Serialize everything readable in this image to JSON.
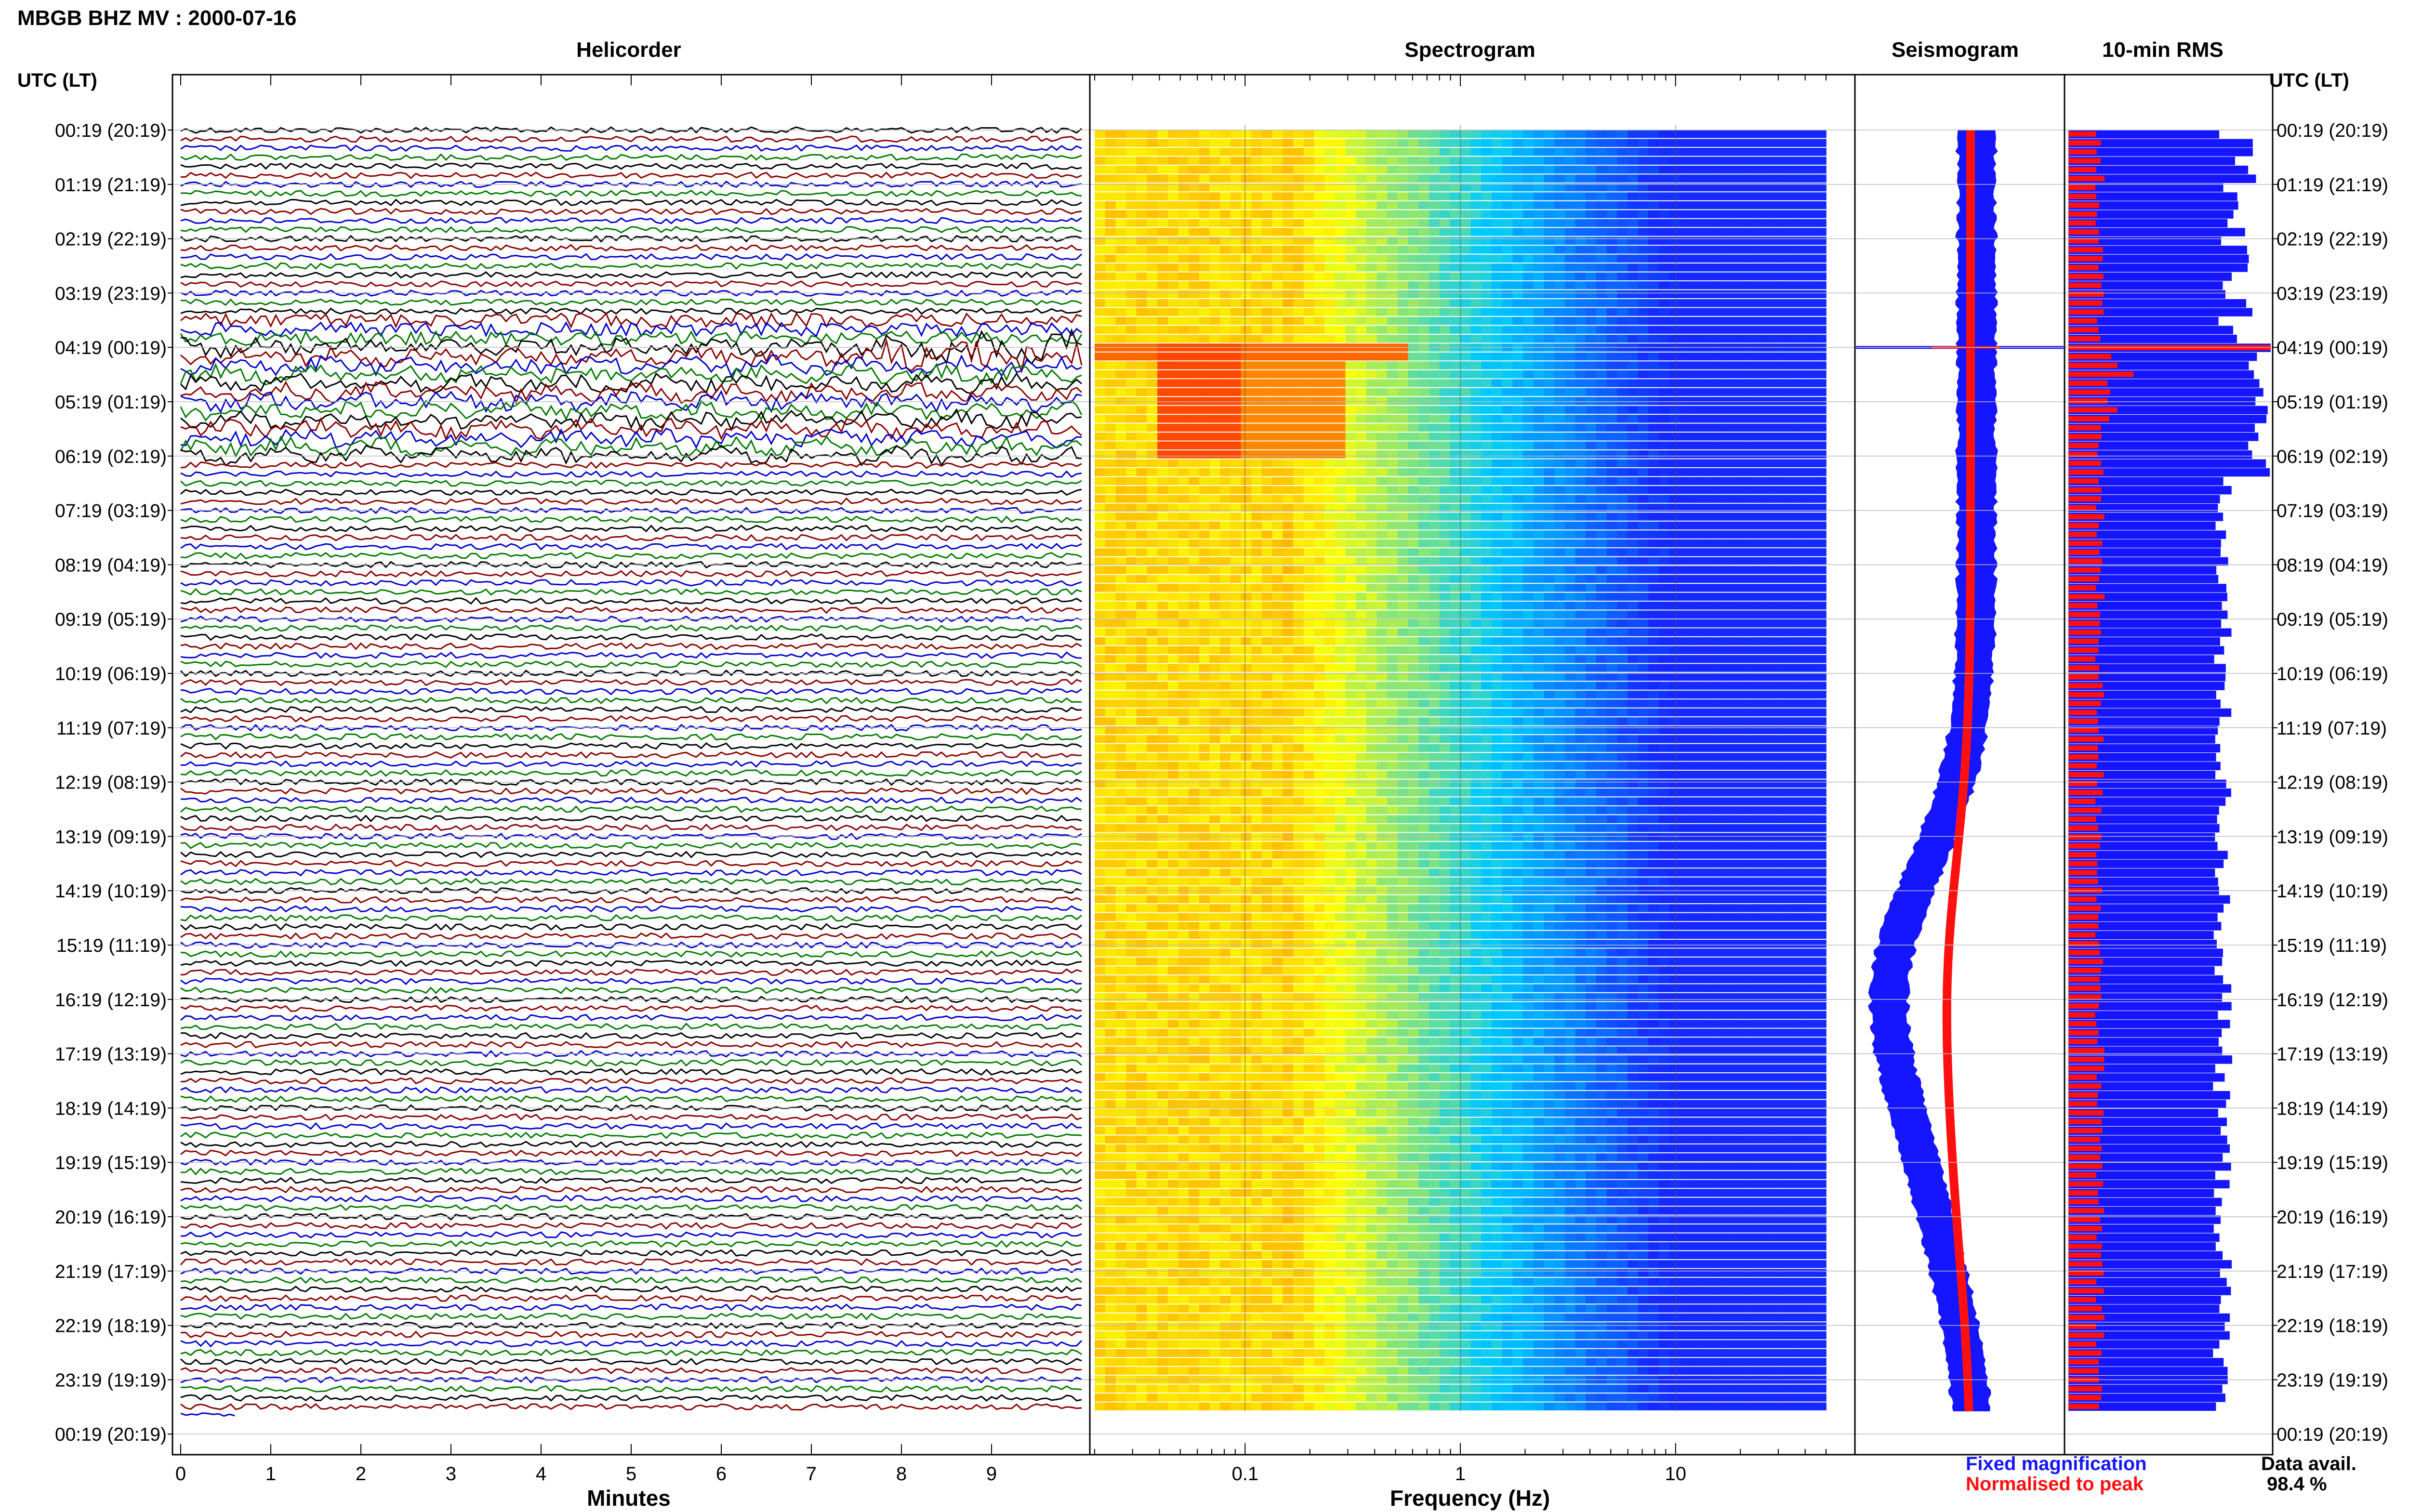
{
  "header": {
    "title": "MBGB BHZ MV : 2000-07-16",
    "utc_label_left": "UTC (LT)",
    "utc_label_right": "UTC (LT)"
  },
  "panels": {
    "helicorder": "Helicorder",
    "spectrogram": "Spectrogram",
    "seismogram": "Seismogram",
    "rms": "10-min RMS"
  },
  "axes": {
    "helicorder_xlabel": "Minutes",
    "helicorder_ticks": [
      "0",
      "1",
      "2",
      "3",
      "4",
      "5",
      "6",
      "7",
      "8",
      "9"
    ],
    "spectrogram_xlabel": "Frequency (Hz)",
    "spectrogram_ticks": [
      "0.1",
      "1",
      "10"
    ]
  },
  "legend": {
    "fixed": "Fixed magnification",
    "normalised": "Normalised to peak",
    "fixed_color": "#1515ff",
    "normalised_color": "#ff1010"
  },
  "data_avail": {
    "label": "Data avail.",
    "value": "98.4 %"
  },
  "colors": {
    "trace_colors": [
      "#000000",
      "#8b0000",
      "#0000cd",
      "#007a00"
    ],
    "seismo_fixed": "#1515ff",
    "seismo_norm": "#ff1010",
    "rms_fixed": "#1515ff",
    "rms_norm": "#ff1010"
  },
  "chart_data": [
    {
      "type": "line",
      "name": "helicorder",
      "title": "Helicorder",
      "xlabel": "Minutes",
      "xlim": [
        0,
        10
      ],
      "y_tick_labels": [
        "00:19 (20:19)",
        "01:19 (21:19)",
        "02:19 (22:19)",
        "03:19 (23:19)",
        "04:19 (00:19)",
        "05:19 (01:19)",
        "06:19 (02:19)",
        "07:19 (03:19)",
        "08:19 (04:19)",
        "09:19 (05:19)",
        "10:19 (06:19)",
        "11:19 (07:19)",
        "12:19 (08:19)",
        "13:19 (09:19)",
        "14:19 (10:19)",
        "15:19 (11:19)",
        "16:19 (12:19)",
        "17:19 (13:19)",
        "18:19 (14:19)",
        "19:19 (15:19)",
        "20:19 (16:19)",
        "21:19 (17:19)",
        "22:19 (18:19)",
        "23:19 (19:19)",
        "00:19 (20:19)"
      ],
      "traces_per_hour": 6,
      "trace_minutes": 10,
      "grid": true
    },
    {
      "type": "heatmap",
      "name": "spectrogram",
      "title": "Spectrogram",
      "xlabel": "Frequency (Hz)",
      "x_scale": "log",
      "xlim": [
        0.02,
        50
      ],
      "x_tick_labels": [
        "0.1",
        "1",
        "10"
      ],
      "colormap": [
        "#0000ff",
        "#00c8ff",
        "#ffff00",
        "#ff0000"
      ],
      "high_power_band": {
        "freq_range_hz": [
          0.04,
          0.3
        ],
        "time_range_utc": [
          "04:19",
          "06:19"
        ]
      }
    },
    {
      "type": "area",
      "name": "seismogram",
      "title": "Seismogram",
      "series": [
        {
          "name": "Fixed magnification",
          "color": "#1515ff"
        },
        {
          "name": "Normalised to peak",
          "color": "#ff1010"
        }
      ],
      "peak_time_utc": "04:19"
    },
    {
      "type": "bar",
      "name": "rms",
      "title": "10-min RMS",
      "orientation": "horizontal",
      "series": [
        {
          "name": "Fixed magnification",
          "color": "#1515ff"
        },
        {
          "name": "Normalised to peak",
          "color": "#ff1010"
        }
      ],
      "peak_time_utc": "04:19"
    }
  ]
}
